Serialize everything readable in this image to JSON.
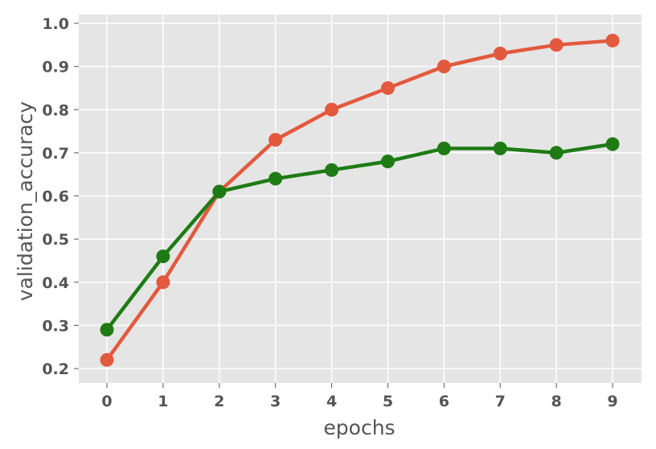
{
  "chart_data": {
    "type": "line",
    "title": "",
    "xlabel": "epochs",
    "ylabel": "validation_accuracy",
    "x": [
      0,
      1,
      2,
      3,
      4,
      5,
      6,
      7,
      8,
      9
    ],
    "x_ticks": [
      "0",
      "1",
      "2",
      "3",
      "4",
      "5",
      "6",
      "7",
      "8",
      "9"
    ],
    "y_ticks": [
      "0.2",
      "0.3",
      "0.4",
      "0.5",
      "0.6",
      "0.7",
      "0.8",
      "0.9",
      "1.0"
    ],
    "ylim": [
      0.18,
      1.01
    ],
    "grid": true,
    "series": [
      {
        "color": "#e2593d",
        "values": [
          0.22,
          0.4,
          0.61,
          0.73,
          0.8,
          0.85,
          0.9,
          0.93,
          0.95,
          0.96
        ]
      },
      {
        "color": "#1e7b14",
        "values": [
          0.29,
          0.46,
          0.61,
          0.64,
          0.66,
          0.68,
          0.71,
          0.71,
          0.7,
          0.72
        ]
      }
    ]
  }
}
